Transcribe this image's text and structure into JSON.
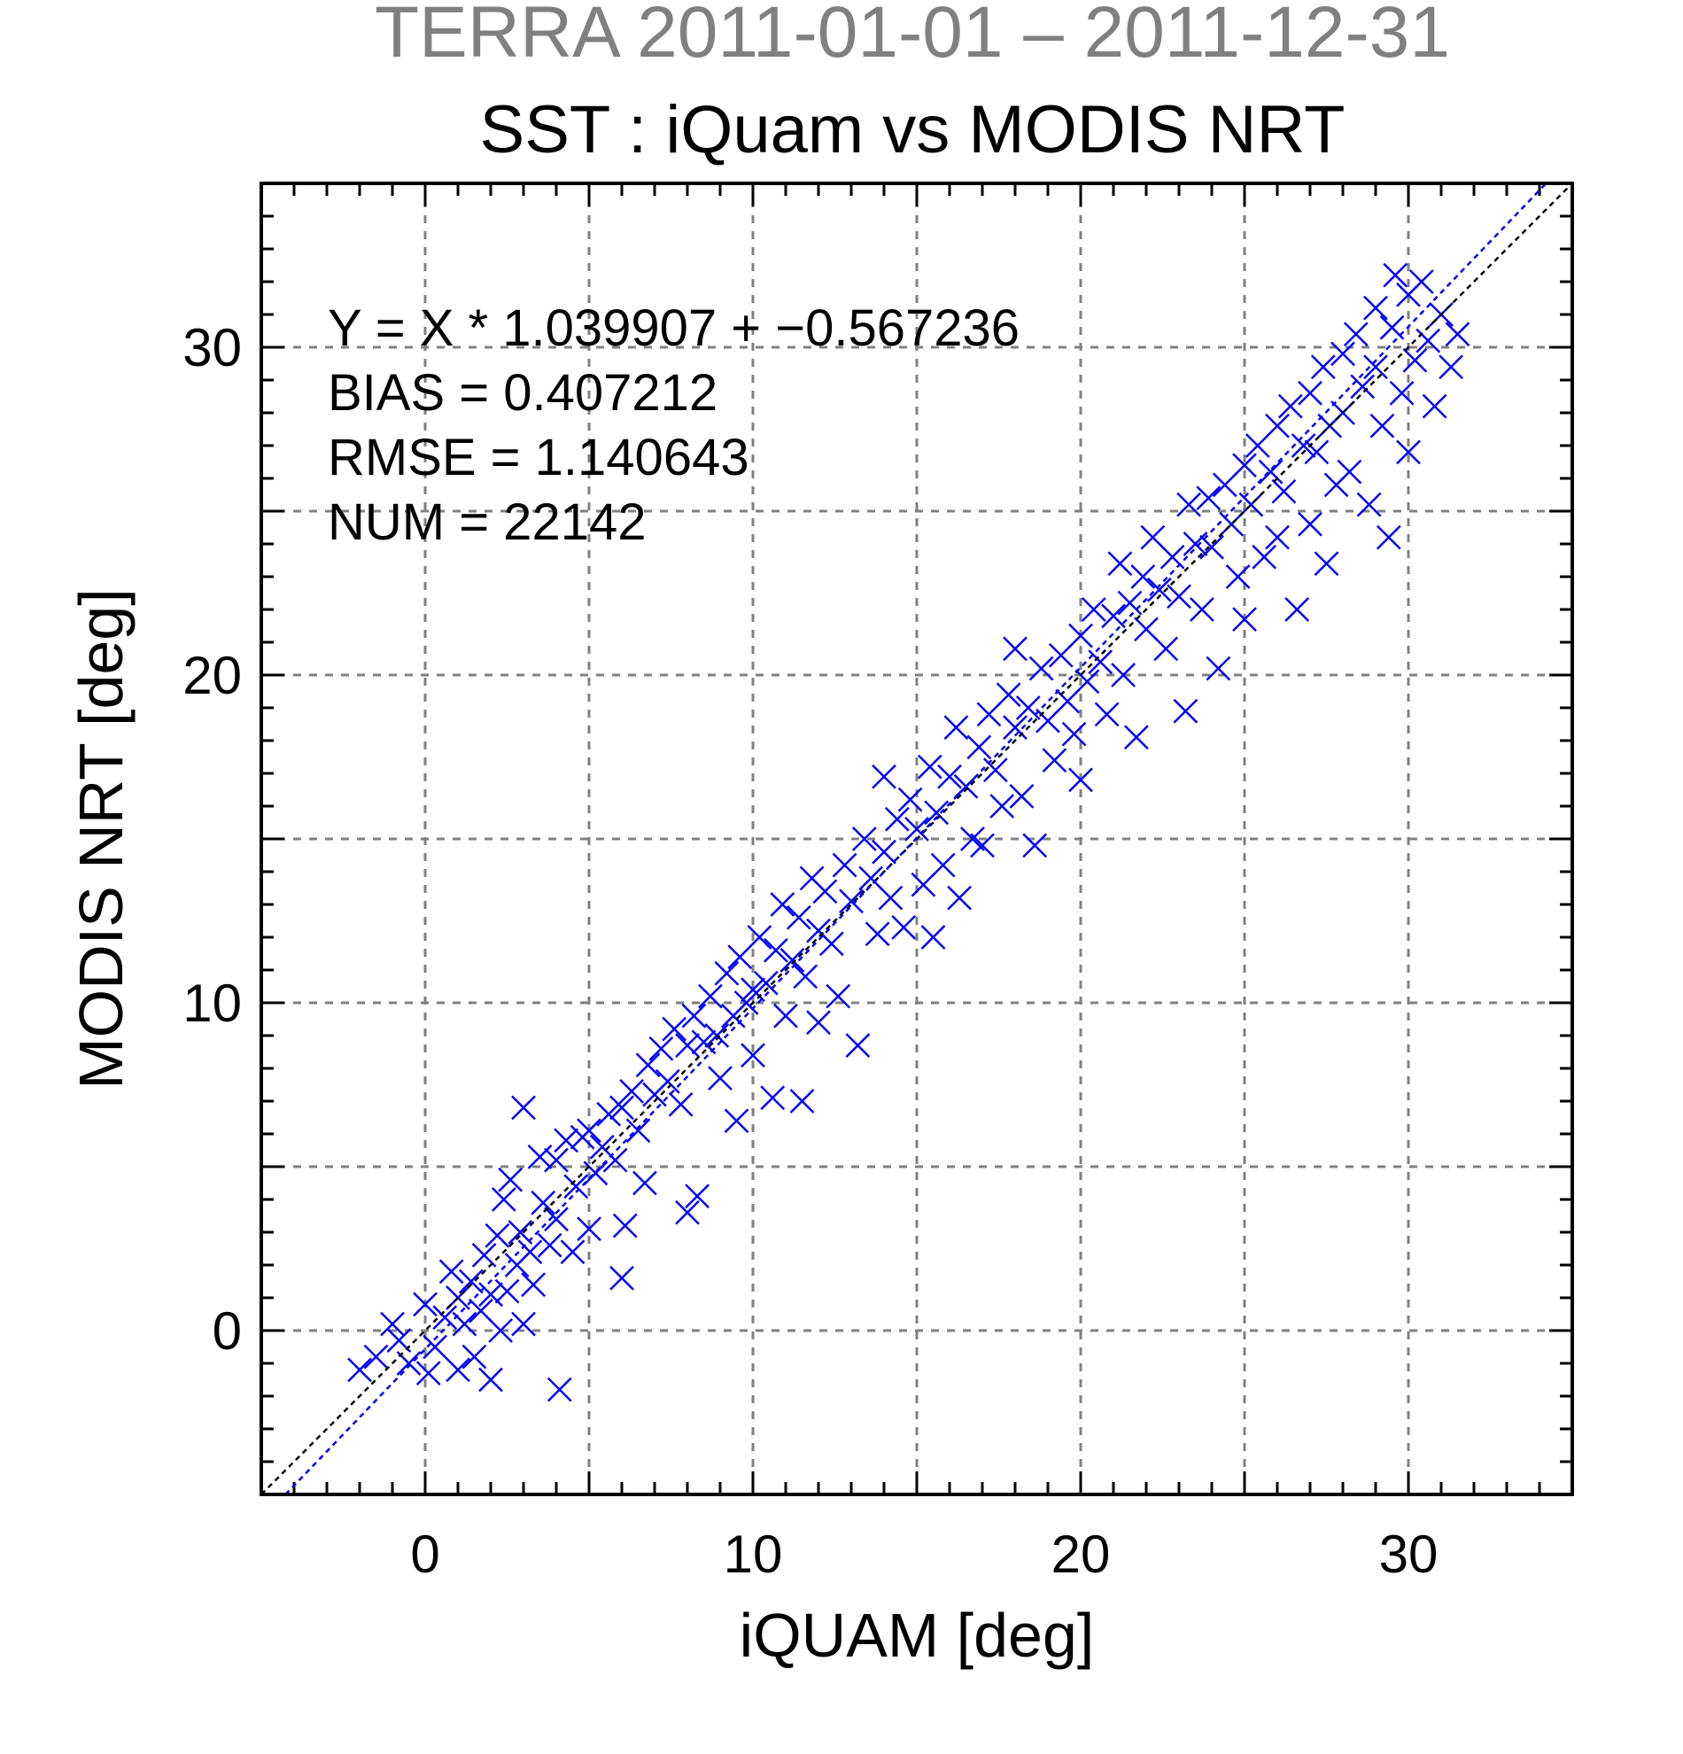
{
  "chart_data": {
    "type": "scatter",
    "title": "TERRA  2011-01-01 – 2011-12-31",
    "subtitle": "SST : iQuam vs MODIS NRT",
    "xlabel": "iQUAM [deg]",
    "ylabel": "MODIS NRT [deg]",
    "xlim": [
      -5,
      35
    ],
    "ylim": [
      -5,
      35
    ],
    "x_ticks": [
      0,
      10,
      20,
      30
    ],
    "y_ticks": [
      0,
      10,
      20,
      30
    ],
    "x_tick_labels": [
      "0",
      "10",
      "20",
      "30"
    ],
    "y_tick_labels": [
      "0",
      "10",
      "20",
      "30"
    ],
    "grid": true,
    "grid_step": 5,
    "marker": "x",
    "colors": {
      "points": "#0000ff",
      "fit_line": "#0000ff",
      "identity_line": "#000000",
      "grid": "#808080",
      "title_top": "#808080"
    },
    "stats_lines": [
      "Y = X * 1.039907 + −0.567236",
      "BIAS = 0.407212",
      "RMSE = 1.140643",
      "NUM = 22142"
    ],
    "regression": {
      "slope": 1.039907,
      "intercept": -0.567236
    },
    "identity_line": {
      "slope": 1,
      "intercept": 0
    },
    "points": [
      [
        -2.0,
        -1.2
      ],
      [
        -1.5,
        -0.8
      ],
      [
        -1.0,
        0.2
      ],
      [
        -0.8,
        -0.3
      ],
      [
        -0.5,
        -1.0
      ],
      [
        0.0,
        0.8
      ],
      [
        0.1,
        -1.3
      ],
      [
        0.3,
        -0.5
      ],
      [
        0.6,
        0.4
      ],
      [
        0.8,
        1.8
      ],
      [
        1.0,
        1.0
      ],
      [
        1.0,
        -1.2
      ],
      [
        1.2,
        0.2
      ],
      [
        1.4,
        1.5
      ],
      [
        1.5,
        -0.8
      ],
      [
        1.7,
        0.6
      ],
      [
        1.8,
        2.3
      ],
      [
        2.0,
        1.1
      ],
      [
        2.0,
        -1.5
      ],
      [
        2.2,
        2.9
      ],
      [
        2.3,
        0.0
      ],
      [
        2.4,
        4.0
      ],
      [
        2.5,
        1.2
      ],
      [
        2.6,
        4.6
      ],
      [
        2.8,
        2.0
      ],
      [
        2.9,
        3.0
      ],
      [
        3.0,
        0.2
      ],
      [
        3.0,
        6.8
      ],
      [
        3.2,
        2.4
      ],
      [
        3.3,
        1.4
      ],
      [
        3.5,
        5.3
      ],
      [
        3.6,
        3.9
      ],
      [
        3.8,
        2.6
      ],
      [
        4.0,
        5.2
      ],
      [
        4.0,
        3.4
      ],
      [
        4.1,
        -1.8
      ],
      [
        4.3,
        5.8
      ],
      [
        4.5,
        2.4
      ],
      [
        4.6,
        4.4
      ],
      [
        4.8,
        5.9
      ],
      [
        5.0,
        6.1
      ],
      [
        5.0,
        3.1
      ],
      [
        5.2,
        4.8
      ],
      [
        5.4,
        5.6
      ],
      [
        5.6,
        6.6
      ],
      [
        5.8,
        5.2
      ],
      [
        6.0,
        1.6
      ],
      [
        6.0,
        6.8
      ],
      [
        6.1,
        3.2
      ],
      [
        6.3,
        7.3
      ],
      [
        6.5,
        6.1
      ],
      [
        6.7,
        4.5
      ],
      [
        6.8,
        8.1
      ],
      [
        7.0,
        7.2
      ],
      [
        7.2,
        8.6
      ],
      [
        7.4,
        7.6
      ],
      [
        7.6,
        9.2
      ],
      [
        7.8,
        6.9
      ],
      [
        8.0,
        8.7
      ],
      [
        8.0,
        3.6
      ],
      [
        8.2,
        9.6
      ],
      [
        8.3,
        4.1
      ],
      [
        8.5,
        8.8
      ],
      [
        8.7,
        10.2
      ],
      [
        8.9,
        9.0
      ],
      [
        9.0,
        7.7
      ],
      [
        9.2,
        10.9
      ],
      [
        9.4,
        9.6
      ],
      [
        9.5,
        6.4
      ],
      [
        9.6,
        11.4
      ],
      [
        9.8,
        10.0
      ],
      [
        10.0,
        10.4
      ],
      [
        10.0,
        8.4
      ],
      [
        10.2,
        12.0
      ],
      [
        10.4,
        10.6
      ],
      [
        10.6,
        7.1
      ],
      [
        10.7,
        11.6
      ],
      [
        10.9,
        13.0
      ],
      [
        11.0,
        9.6
      ],
      [
        11.2,
        11.3
      ],
      [
        11.4,
        12.6
      ],
      [
        11.5,
        7.0
      ],
      [
        11.6,
        10.8
      ],
      [
        11.8,
        13.8
      ],
      [
        12.0,
        12.2
      ],
      [
        12.0,
        9.4
      ],
      [
        12.2,
        13.4
      ],
      [
        12.4,
        11.8
      ],
      [
        12.6,
        10.2
      ],
      [
        12.8,
        14.2
      ],
      [
        13.0,
        13.1
      ],
      [
        13.2,
        8.7
      ],
      [
        13.4,
        15.0
      ],
      [
        13.6,
        13.8
      ],
      [
        13.8,
        12.1
      ],
      [
        14.0,
        14.6
      ],
      [
        14.0,
        16.9
      ],
      [
        14.2,
        13.2
      ],
      [
        14.4,
        15.6
      ],
      [
        14.6,
        12.3
      ],
      [
        14.8,
        16.2
      ],
      [
        15.0,
        15.3
      ],
      [
        15.2,
        13.6
      ],
      [
        15.4,
        17.2
      ],
      [
        15.5,
        12.0
      ],
      [
        15.6,
        15.8
      ],
      [
        15.8,
        14.2
      ],
      [
        16.0,
        16.9
      ],
      [
        16.2,
        18.4
      ],
      [
        16.3,
        13.2
      ],
      [
        16.5,
        16.6
      ],
      [
        16.7,
        15.0
      ],
      [
        16.9,
        17.8
      ],
      [
        17.0,
        14.8
      ],
      [
        17.2,
        18.8
      ],
      [
        17.4,
        17.1
      ],
      [
        17.6,
        16.0
      ],
      [
        17.8,
        19.4
      ],
      [
        18.0,
        18.4
      ],
      [
        18.0,
        20.8
      ],
      [
        18.2,
        16.3
      ],
      [
        18.4,
        19.0
      ],
      [
        18.6,
        14.8
      ],
      [
        18.8,
        20.2
      ],
      [
        19.0,
        18.6
      ],
      [
        19.2,
        17.4
      ],
      [
        19.4,
        20.6
      ],
      [
        19.6,
        19.2
      ],
      [
        19.8,
        18.2
      ],
      [
        20.0,
        21.2
      ],
      [
        20.0,
        16.8
      ],
      [
        20.2,
        19.8
      ],
      [
        20.4,
        22.0
      ],
      [
        20.6,
        20.4
      ],
      [
        20.8,
        18.8
      ],
      [
        21.0,
        21.8
      ],
      [
        21.2,
        23.4
      ],
      [
        21.3,
        20.0
      ],
      [
        21.5,
        22.2
      ],
      [
        21.7,
        18.1
      ],
      [
        21.9,
        23.0
      ],
      [
        22.0,
        21.4
      ],
      [
        22.2,
        24.2
      ],
      [
        22.4,
        22.6
      ],
      [
        22.6,
        20.8
      ],
      [
        22.8,
        23.6
      ],
      [
        23.0,
        22.4
      ],
      [
        23.2,
        18.9
      ],
      [
        23.3,
        25.2
      ],
      [
        23.5,
        24.0
      ],
      [
        23.7,
        22.0
      ],
      [
        23.9,
        25.4
      ],
      [
        24.0,
        23.9
      ],
      [
        24.2,
        20.2
      ],
      [
        24.4,
        25.8
      ],
      [
        24.6,
        24.6
      ],
      [
        24.8,
        23.0
      ],
      [
        25.0,
        26.4
      ],
      [
        25.0,
        21.7
      ],
      [
        25.2,
        25.2
      ],
      [
        25.4,
        27.0
      ],
      [
        25.6,
        23.6
      ],
      [
        25.8,
        26.2
      ],
      [
        26.0,
        27.6
      ],
      [
        26.0,
        24.2
      ],
      [
        26.2,
        25.6
      ],
      [
        26.4,
        28.2
      ],
      [
        26.6,
        22.0
      ],
      [
        26.8,
        27.0
      ],
      [
        27.0,
        28.6
      ],
      [
        27.0,
        24.6
      ],
      [
        27.2,
        26.8
      ],
      [
        27.4,
        29.4
      ],
      [
        27.5,
        23.4
      ],
      [
        27.6,
        27.6
      ],
      [
        27.8,
        25.8
      ],
      [
        28.0,
        29.8
      ],
      [
        28.0,
        28.0
      ],
      [
        28.2,
        26.2
      ],
      [
        28.4,
        30.4
      ],
      [
        28.6,
        28.8
      ],
      [
        28.8,
        25.2
      ],
      [
        29.0,
        31.2
      ],
      [
        29.0,
        29.4
      ],
      [
        29.2,
        27.6
      ],
      [
        29.4,
        24.2
      ],
      [
        29.5,
        30.6
      ],
      [
        29.6,
        32.2
      ],
      [
        29.8,
        28.6
      ],
      [
        30.0,
        31.6
      ],
      [
        30.0,
        26.8
      ],
      [
        30.2,
        29.6
      ],
      [
        30.4,
        32.0
      ],
      [
        30.6,
        30.2
      ],
      [
        30.8,
        28.2
      ],
      [
        31.0,
        31.0
      ],
      [
        31.3,
        29.4
      ],
      [
        31.5,
        30.4
      ]
    ]
  }
}
